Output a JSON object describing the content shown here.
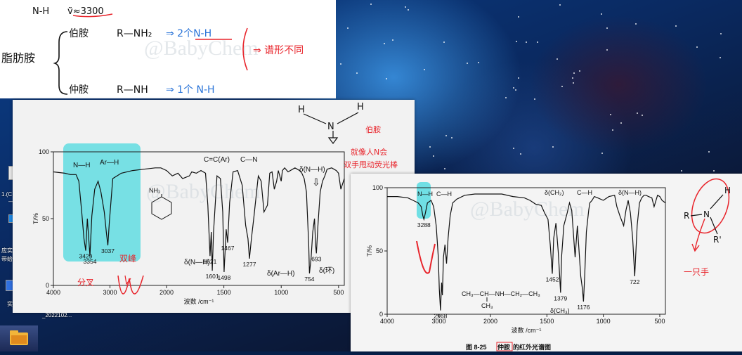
{
  "notes": {
    "line1": "N-H",
    "line1_value": "ṽ≈3300",
    "category": "脂肪胺",
    "primary_label": "伯胺",
    "primary_formula": "R—NH₂",
    "primary_result": "⇒ 2个N-H",
    "secondary_label": "仲胺",
    "secondary_formula": "R—NH",
    "secondary_sub": "R'",
    "secondary_result": "⇒ 1个 N-H",
    "red_note": "⇒ 谱形不同"
  },
  "watermark": "@BabyChem",
  "spectrum1": {
    "annotations": {
      "top_labels": [
        "N—H",
        "Ar—H",
        "C=C(Ar)",
        "C—N",
        "δ(N—H)"
      ],
      "arrow_hint": "⇩",
      "molecule": "NH₂",
      "red_primary": "伯胺",
      "red_note_line1": "就像人N会",
      "red_note_line2": "双手甩动荧光棒",
      "red_split": "分叉",
      "red_twin": "双峰",
      "nh_delta": "δ(N—H)",
      "ar_delta": "δ(Ar—H)",
      "ring_delta": "δ(环)"
    }
  },
  "spectrum2": {
    "annotations": {
      "top_labels": [
        "N—H",
        "C—H",
        "δ(CH₂)",
        "C—H",
        "δ(N—H)"
      ],
      "structure_line1": "CH₃—CH—NH—CH₂—CH₃",
      "structure_line2": "CH₃",
      "ch3_delta": "δ(CH₃)",
      "caption_prefix": "图 8-25",
      "caption_boxed": "仲胺",
      "caption_suffix": "的红外光谱图",
      "side_R": "R",
      "side_N": "N",
      "side_H": "H",
      "side_R2": "R'",
      "side_note": "一只手"
    }
  },
  "desktop": {
    "labels": [
      "1.(C",
      "—6",
      "应实",
      "带给",
      "实",
      "_2022102..."
    ]
  },
  "chart_data": [
    {
      "type": "line",
      "title": "",
      "xlabel": "波数 /cm⁻¹",
      "ylabel": "T/%",
      "xlim": [
        4000,
        450
      ],
      "ylim": [
        0,
        100
      ],
      "x_ticks": [
        4000,
        3000,
        2000,
        1500,
        1000,
        500
      ],
      "y_ticks": [
        0,
        50,
        100
      ],
      "grid": false,
      "series": [
        {
          "x": [
            4000,
            3800,
            3700,
            3600,
            3550,
            3500,
            3460,
            3429,
            3400,
            3380,
            3354,
            3320,
            3270,
            3210,
            3160,
            3100,
            3060,
            3037,
            3010,
            2950,
            2800,
            2600,
            2400,
            2200,
            2100,
            2000,
            1950,
            1900,
            1860,
            1800,
            1780,
            1740,
            1700,
            1660,
            1640,
            1621,
            1610,
            1601,
            1590,
            1560,
            1530,
            1510,
            1498,
            1480,
            1467,
            1450,
            1420,
            1380,
            1340,
            1310,
            1290,
            1277,
            1260,
            1240,
            1200,
            1175,
            1150,
            1120,
            1100,
            1080,
            1060,
            1040,
            1025,
            1000,
            990,
            970,
            940,
            900,
            880,
            860,
            840,
            820,
            800,
            780,
            760,
            754,
            740,
            725,
            710,
            700,
            693,
            680,
            660,
            640,
            620,
            600,
            560,
            520,
            500,
            480,
            450
          ],
          "y": [
            85,
            84,
            83,
            83,
            78,
            55,
            35,
            26,
            50,
            38,
            22,
            52,
            72,
            78,
            70,
            55,
            38,
            30,
            48,
            80,
            84,
            86,
            87,
            88,
            88,
            86,
            82,
            84,
            80,
            82,
            85,
            84,
            86,
            84,
            60,
            22,
            40,
            11,
            40,
            82,
            80,
            55,
            10,
            42,
            32,
            62,
            85,
            86,
            75,
            45,
            35,
            20,
            35,
            50,
            82,
            78,
            55,
            60,
            84,
            85,
            72,
            78,
            86,
            78,
            86,
            88,
            85,
            87,
            88,
            87,
            86,
            84,
            80,
            70,
            30,
            9,
            20,
            40,
            50,
            30,
            24,
            45,
            70,
            78,
            82,
            87,
            88,
            86,
            84,
            72,
            80
          ]
        }
      ],
      "annotations": [
        {
          "x": 3429,
          "y": 26,
          "text": "3429"
        },
        {
          "x": 3354,
          "y": 22,
          "text": "3354"
        },
        {
          "x": 3037,
          "y": 30,
          "text": "3037"
        },
        {
          "x": 1621,
          "y": 22,
          "text": "1621"
        },
        {
          "x": 1601,
          "y": 11,
          "text": "1601"
        },
        {
          "x": 1498,
          "y": 10,
          "text": "1498"
        },
        {
          "x": 1467,
          "y": 32,
          "text": "1467"
        },
        {
          "x": 1277,
          "y": 20,
          "text": "1277"
        },
        {
          "x": 754,
          "y": 9,
          "text": "754"
        },
        {
          "x": 693,
          "y": 24,
          "text": "693"
        }
      ]
    },
    {
      "type": "line",
      "title": "",
      "xlabel": "波数 /cm⁻¹",
      "ylabel": "T/%",
      "xlim": [
        4000,
        450
      ],
      "ylim": [
        0,
        100
      ],
      "x_ticks": [
        4000,
        3000,
        2000,
        1500,
        1000,
        500
      ],
      "y_ticks": [
        0,
        50,
        100
      ],
      "grid": false,
      "series": [
        {
          "x": [
            4000,
            3800,
            3600,
            3500,
            3400,
            3340,
            3310,
            3288,
            3260,
            3220,
            3150,
            3100,
            3050,
            3010,
            2990,
            2968,
            2945,
            2930,
            2910,
            2880,
            2850,
            2820,
            2780,
            2730,
            2650,
            2500,
            2300,
            2100,
            1900,
            1800,
            1700,
            1650,
            1600,
            1550,
            1520,
            1490,
            1470,
            1452,
            1440,
            1420,
            1400,
            1390,
            1379,
            1370,
            1350,
            1320,
            1300,
            1280,
            1250,
            1230,
            1200,
            1185,
            1176,
            1165,
            1150,
            1130,
            1120,
            1100,
            1080,
            1050,
            1000,
            950,
            900,
            880,
            850,
            820,
            800,
            780,
            760,
            740,
            722,
            700,
            680,
            660,
            640,
            620,
            600,
            570,
            550,
            520,
            500,
            480,
            450
          ],
          "y": [
            93,
            93,
            92,
            90,
            88,
            85,
            78,
            75,
            80,
            88,
            90,
            85,
            70,
            45,
            20,
            3,
            25,
            15,
            45,
            55,
            40,
            60,
            78,
            88,
            91,
            94,
            95,
            95,
            95,
            93,
            92,
            90,
            87,
            86,
            80,
            75,
            55,
            32,
            60,
            72,
            50,
            35,
            17,
            45,
            70,
            80,
            88,
            82,
            45,
            70,
            30,
            20,
            10,
            30,
            65,
            82,
            88,
            90,
            93,
            92,
            90,
            93,
            94,
            85,
            77,
            70,
            82,
            90,
            80,
            60,
            30,
            70,
            88,
            92,
            94,
            94,
            93,
            92,
            85,
            94,
            93,
            90,
            88
          ]
        }
      ],
      "annotations": [
        {
          "x": 3288,
          "y": 75,
          "text": "3288"
        },
        {
          "x": 2968,
          "y": 3,
          "text": "2968"
        },
        {
          "x": 1452,
          "y": 32,
          "text": "1452"
        },
        {
          "x": 1379,
          "y": 17,
          "text": "1379"
        },
        {
          "x": 1176,
          "y": 10,
          "text": "1176"
        },
        {
          "x": 722,
          "y": 30,
          "text": "722"
        }
      ]
    }
  ],
  "colors": {
    "ink": "#1a1a1a",
    "red_pen": "#e8242b",
    "blue_pen": "#2a74d8",
    "highlight": "#58dbe0"
  }
}
